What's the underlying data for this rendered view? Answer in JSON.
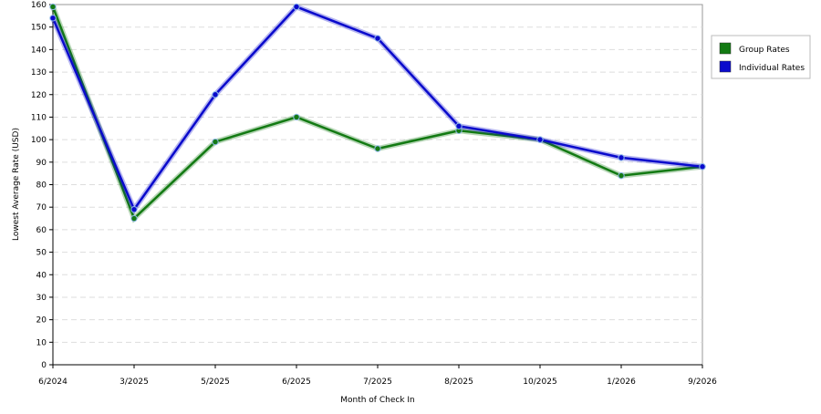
{
  "chart_data": {
    "type": "line",
    "x_label": "Month of Check In",
    "y_label": "Lowest Average Rate (USD)",
    "categories": [
      "6/2024",
      "3/2025",
      "5/2025",
      "6/2025",
      "7/2025",
      "8/2025",
      "10/2025",
      "1/2026",
      "9/2026"
    ],
    "series": [
      {
        "name": "Group Rates",
        "color": "#137a13",
        "values": [
          159,
          65,
          99,
          110,
          96,
          104,
          100,
          84,
          88
        ]
      },
      {
        "name": "Individual Rates",
        "color": "#0a0acc",
        "values": [
          154,
          69,
          120,
          159,
          145,
          106,
          100,
          92,
          88
        ]
      }
    ],
    "ylim": [
      0,
      160
    ],
    "yticks": [
      0,
      10,
      20,
      30,
      40,
      50,
      60,
      70,
      80,
      90,
      100,
      110,
      120,
      130,
      140,
      150,
      160
    ],
    "grid": true,
    "legend": "right"
  }
}
